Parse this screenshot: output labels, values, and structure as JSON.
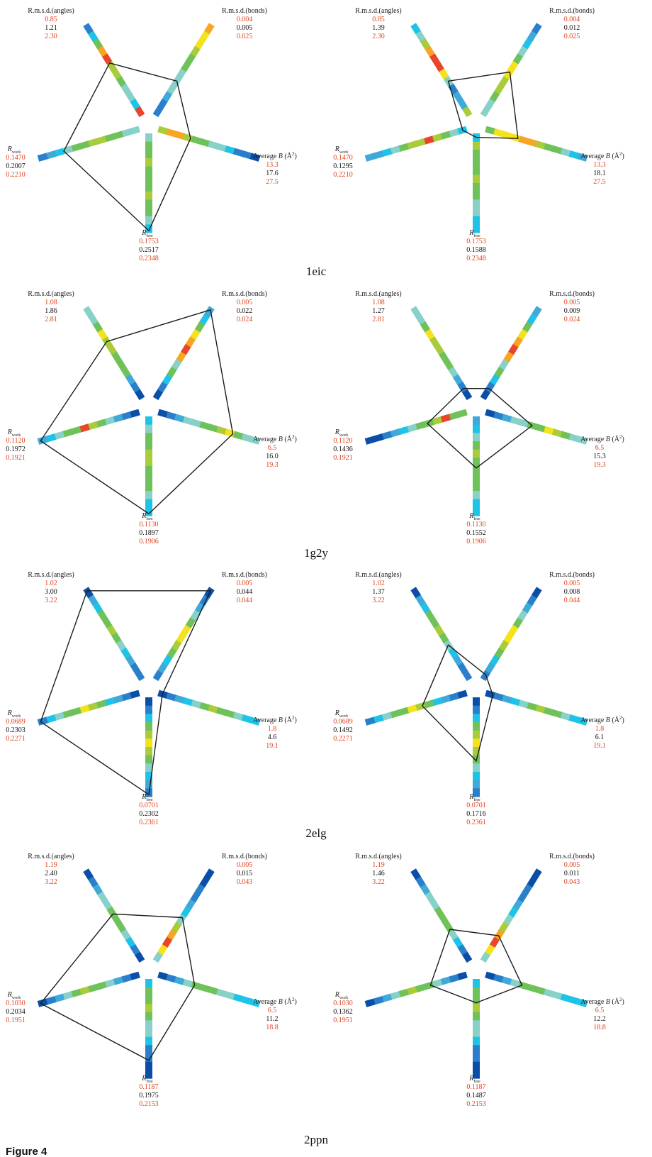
{
  "figure_label": "Figure 4",
  "axis_labels": {
    "angles": "R.m.s.d.(angles)",
    "bonds": "R.m.s.d.(bonds)",
    "avgb_prefix": "Average ",
    "avgb_var": "B",
    "avgb_unit": " (Å",
    "avgb_sup": "2",
    "avgb_close": ")",
    "rwork_main": "R",
    "rwork_sub": "work",
    "rfree_main": "R",
    "rfree_sub": "free"
  },
  "colors": {
    "reference_text": "#e2431e",
    "value_text": "#111111",
    "outline": "#1c1c1c",
    "scale": [
      "#0a4ea8",
      "#2a7fcb",
      "#3fa9d9",
      "#1ec3e8",
      "#87d1c9",
      "#6fc25a",
      "#a8cc3a",
      "#f3e21c",
      "#f6a623",
      "#e8452b"
    ]
  },
  "structures": [
    {
      "pdb_id": "1eic",
      "ranges": {
        "angles": [
          "0.85",
          "2.30"
        ],
        "bonds": [
          "0.004",
          "0.025"
        ],
        "avgb": [
          "13.3",
          "27.5"
        ],
        "rfree": [
          "0.1753",
          "0.2348"
        ],
        "rwork": [
          "0.1470",
          "0.2210"
        ]
      },
      "panels": [
        {
          "values": {
            "angles": "1.21",
            "bonds": "0.005",
            "avgb": "17.6",
            "rfree": "0.2517",
            "rwork": "0.2007"
          },
          "bars": {
            "angles": [
              9,
              3,
              4,
              4,
              5,
              6,
              6,
              9,
              8,
              5,
              3,
              1
            ],
            "bonds": [
              1,
              1,
              2,
              4,
              4,
              4,
              5,
              5,
              6,
              7,
              7,
              8
            ],
            "avgb": [
              6,
              8,
              8,
              6,
              5,
              5,
              4,
              4,
              3,
              1,
              1,
              0
            ],
            "rfree": [
              4,
              5,
              5,
              6,
              5,
              5,
              5,
              6,
              5,
              5,
              4,
              3
            ],
            "rwork": [
              4,
              4,
              5,
              5,
              6,
              6,
              5,
              5,
              4,
              3,
              2,
              1
            ]
          }
        },
        {
          "values": {
            "angles": "1.39",
            "bonds": "0.012",
            "avgb": "18.1",
            "rfree": "0.1588",
            "rwork": "0.1295"
          },
          "bars": {
            "angles": [
              6,
              2,
              2,
              1,
              4,
              7,
              9,
              9,
              8,
              6,
              4,
              3
            ],
            "bonds": [
              4,
              4,
              5,
              6,
              6,
              7,
              7,
              5,
              4,
              3,
              2,
              1
            ],
            "avgb": [
              5,
              7,
              7,
              7,
              8,
              8,
              6,
              5,
              5,
              4,
              3,
              2
            ],
            "rfree": [
              3,
              6,
              5,
              5,
              5,
              6,
              5,
              5,
              4,
              4,
              3,
              3
            ],
            "rwork": [
              3,
              4,
              5,
              6,
              9,
              6,
              6,
              5,
              4,
              3,
              2,
              2
            ]
          }
        }
      ]
    },
    {
      "pdb_id": "1g2y",
      "ranges": {
        "angles": [
          "1.08",
          "2.81"
        ],
        "bonds": [
          "0.005",
          "0.024"
        ],
        "avgb": [
          "6.5",
          "19.3"
        ],
        "rfree": [
          "0.1130",
          "0.1906"
        ],
        "rwork": [
          "0.1120",
          "0.1921"
        ]
      },
      "panels": [
        {
          "values": {
            "angles": "1.86",
            "bonds": "0.022",
            "avgb": "16.0",
            "rfree": "0.1897",
            "rwork": "0.1972"
          },
          "bars": {
            "angles": [
              0,
              1,
              2,
              5,
              5,
              5,
              6,
              6,
              7,
              5,
              4,
              4
            ],
            "bonds": [
              0,
              1,
              3,
              5,
              4,
              8,
              9,
              8,
              7,
              5,
              3,
              2
            ],
            "avgb": [
              0,
              1,
              2,
              4,
              4,
              5,
              5,
              6,
              7,
              5,
              4,
              4
            ],
            "rfree": [
              3,
              4,
              5,
              5,
              6,
              6,
              5,
              5,
              5,
              4,
              3,
              3
            ],
            "rwork": [
              0,
              1,
              2,
              4,
              5,
              6,
              9,
              5,
              5,
              4,
              3,
              2
            ]
          }
        },
        {
          "values": {
            "angles": "1.27",
            "bonds": "0.009",
            "avgb": "15.3",
            "rfree": "0.1552",
            "rwork": "0.1436"
          },
          "bars": {
            "angles": [
              0,
              1,
              2,
              4,
              5,
              5,
              6,
              6,
              7,
              5,
              4,
              4
            ],
            "bonds": [
              0,
              1,
              3,
              5,
              4,
              8,
              9,
              8,
              7,
              5,
              3,
              2
            ],
            "avgb": [
              0,
              1,
              2,
              4,
              4,
              5,
              5,
              7,
              6,
              5,
              4,
              4
            ],
            "rfree": [
              2,
              3,
              4,
              5,
              6,
              5,
              5,
              5,
              5,
              4,
              3,
              3
            ],
            "rwork": [
              5,
              5,
              9,
              6,
              5,
              5,
              4,
              3,
              2,
              1,
              0,
              0
            ]
          }
        }
      ]
    },
    {
      "pdb_id": "2elg",
      "ranges": {
        "angles": [
          "1.02",
          "3.22"
        ],
        "bonds": [
          "0.005",
          "0.044"
        ],
        "avgb": [
          "1.8",
          "19.1"
        ],
        "rfree": [
          "0.0701",
          "0.2361"
        ],
        "rwork": [
          "0.0689",
          "0.2271"
        ]
      },
      "panels": [
        {
          "values": {
            "angles": "3.00",
            "bonds": "0.044",
            "avgb": "4.6",
            "rfree": "0.2302",
            "rwork": "0.2303"
          },
          "bars": {
            "angles": [
              1,
              1,
              2,
              3,
              4,
              5,
              6,
              5,
              5,
              3,
              2,
              0
            ],
            "bonds": [
              1,
              2,
              3,
              5,
              6,
              7,
              7,
              5,
              4,
              2,
              1,
              0
            ],
            "avgb": [
              0,
              1,
              2,
              3,
              4,
              5,
              6,
              5,
              5,
              4,
              3,
              3
            ],
            "rfree": [
              0,
              1,
              3,
              5,
              6,
              7,
              6,
              5,
              4,
              3,
              2,
              1
            ],
            "rwork": [
              0,
              1,
              2,
              3,
              5,
              6,
              7,
              5,
              5,
              4,
              3,
              1
            ]
          }
        },
        {
          "values": {
            "angles": "1.37",
            "bonds": "0.008",
            "avgb": "6.1",
            "rfree": "0.1716",
            "rwork": "0.1492"
          },
          "bars": {
            "angles": [
              1,
              1,
              2,
              3,
              4,
              5,
              6,
              5,
              5,
              3,
              2,
              0
            ],
            "bonds": [
              1,
              2,
              3,
              5,
              6,
              7,
              7,
              5,
              4,
              2,
              1,
              0
            ],
            "avgb": [
              0,
              1,
              2,
              3,
              4,
              5,
              6,
              5,
              5,
              4,
              3,
              3
            ],
            "rfree": [
              0,
              1,
              3,
              5,
              6,
              7,
              6,
              5,
              4,
              3,
              2,
              1
            ],
            "rwork": [
              0,
              1,
              2,
              3,
              5,
              6,
              7,
              5,
              5,
              4,
              3,
              1
            ]
          }
        }
      ]
    },
    {
      "pdb_id": "2ppn",
      "ranges": {
        "angles": [
          "1.19",
          "3.22"
        ],
        "bonds": [
          "0.005",
          "0.043"
        ],
        "avgb": [
          "6.5",
          "18.8"
        ],
        "rfree": [
          "0.1187",
          "0.2153"
        ],
        "rwork": [
          "0.1030",
          "0.1951"
        ]
      },
      "panels": [
        {
          "values": {
            "angles": "2.40",
            "bonds": "0.015",
            "avgb": "11.2",
            "rfree": "0.1975",
            "rwork": "0.2034"
          },
          "bars": {
            "angles": [
              0,
              1,
              3,
              4,
              5,
              5,
              5,
              4,
              4,
              2,
              1,
              0
            ],
            "bonds": [
              4,
              7,
              9,
              8,
              6,
              4,
              3,
              2,
              1,
              1,
              0,
              0
            ],
            "avgb": [
              0,
              1,
              2,
              4,
              5,
              5,
              5,
              4,
              4,
              3,
              3,
              3
            ],
            "rfree": [
              3,
              5,
              5,
              6,
              5,
              4,
              4,
              3,
              1,
              1,
              0,
              0
            ],
            "rwork": [
              0,
              1,
              2,
              4,
              5,
              5,
              6,
              5,
              4,
              2,
              1,
              0
            ]
          }
        },
        {
          "values": {
            "angles": "1.46",
            "bonds": "0.011",
            "avgb": "12.2",
            "rfree": "0.1487",
            "rwork": "0.1362"
          },
          "bars": {
            "angles": [
              0,
              1,
              3,
              4,
              5,
              5,
              5,
              4,
              4,
              2,
              1,
              0
            ],
            "bonds": [
              4,
              7,
              9,
              8,
              6,
              4,
              3,
              2,
              1,
              1,
              0,
              0
            ],
            "avgb": [
              0,
              1,
              2,
              4,
              5,
              5,
              5,
              4,
              4,
              3,
              3,
              3
            ],
            "rfree": [
              3,
              5,
              5,
              6,
              5,
              4,
              4,
              3,
              1,
              1,
              0,
              0
            ],
            "rwork": [
              0,
              1,
              2,
              4,
              5,
              5,
              6,
              5,
              4,
              2,
              1,
              0
            ]
          }
        }
      ]
    }
  ]
}
